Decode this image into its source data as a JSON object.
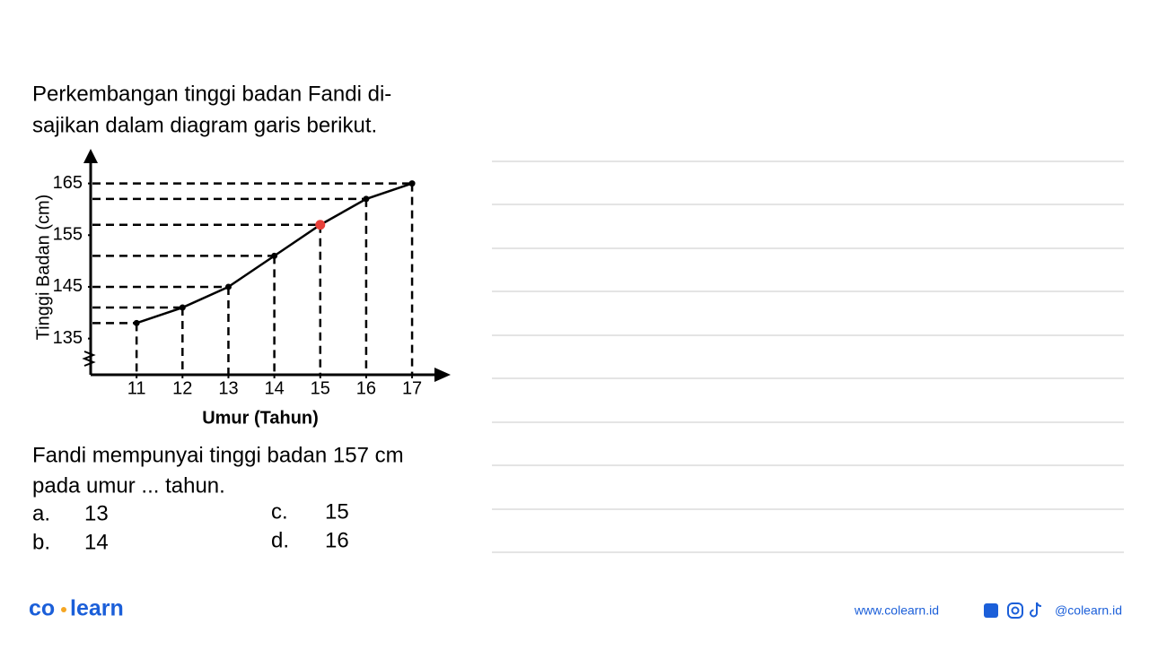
{
  "question": {
    "intro": [
      "Perkembangan tinggi badan Fandi di-",
      "sajikan dalam diagram garis berikut."
    ],
    "prompt": [
      "Fandi mempunyai tinggi badan 157 cm",
      "pada umur ... tahun."
    ],
    "options": [
      {
        "letter": "a.",
        "text": "13"
      },
      {
        "letter": "b.",
        "text": "14"
      },
      {
        "letter": "c.",
        "text": "15"
      },
      {
        "letter": "d.",
        "text": "16"
      }
    ]
  },
  "chart_data": {
    "type": "line",
    "y_label": "Tinggi Badan (cm)",
    "x_label": "Umur (Tahun)",
    "x": [
      11,
      12,
      13,
      14,
      15,
      16,
      17
    ],
    "values": [
      138,
      141,
      145,
      151,
      157,
      162,
      165
    ],
    "color": "#000000",
    "marker_colors": [
      "#000000",
      "#000000",
      "#000000",
      "#000000",
      "#e8403a",
      "#000000",
      "#000000"
    ],
    "xlim": [
      10,
      17.8
    ],
    "xticks": [
      11,
      12,
      13,
      14,
      15,
      16,
      17
    ],
    "ylim": [
      128,
      171
    ],
    "yticks": [
      135,
      145,
      155,
      165
    ],
    "guide_lines": true
  },
  "footer": {
    "logo_left": "co",
    "logo_right": "learn",
    "website": "www.colearn.id",
    "handle": "@colearn.id"
  }
}
